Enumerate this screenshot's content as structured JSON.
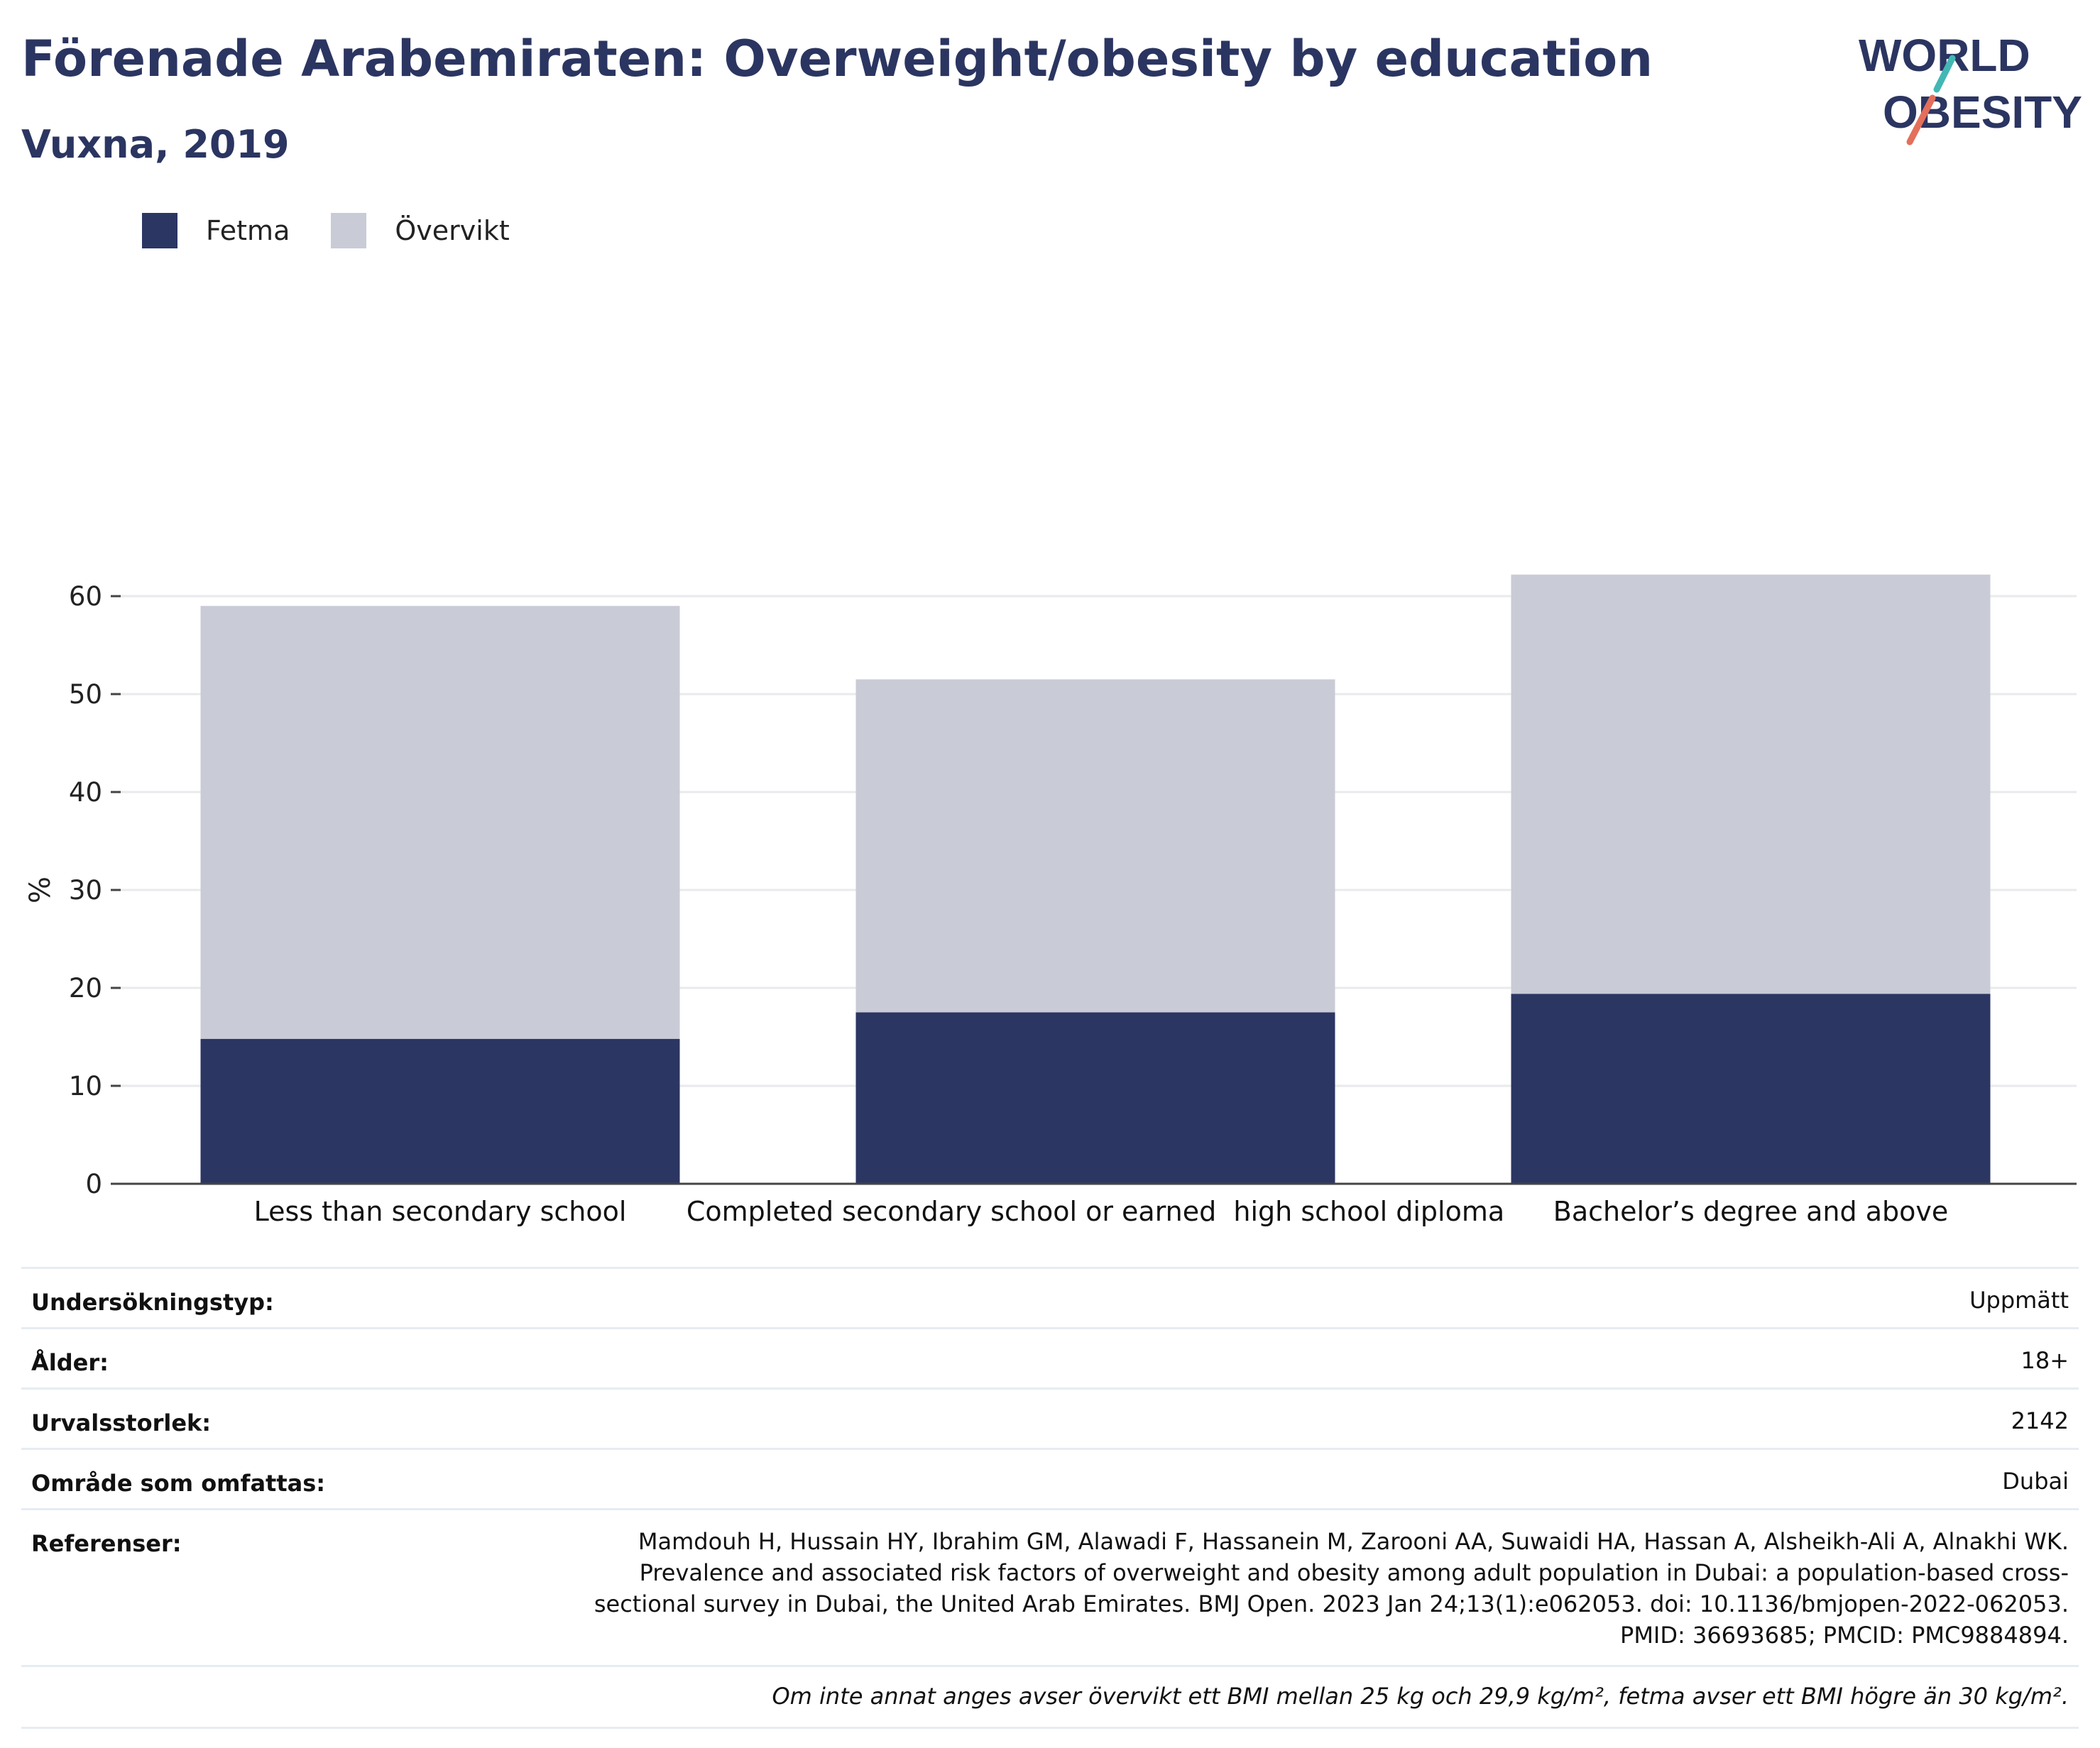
{
  "title": "Förenade Arabemiraten: Overweight/obesity by education",
  "subtitle": "Vuxna, 2019",
  "logo": {
    "line1": "WORLD",
    "line2": "OBESITY"
  },
  "legend": [
    {
      "label": "Fetma",
      "color": "#2b3663"
    },
    {
      "label": "Övervikt",
      "color": "#c9cbd6"
    }
  ],
  "chart_data": {
    "type": "bar",
    "stacked": true,
    "categories": [
      "Less than secondary school",
      "Completed secondary school or earned  high school diploma",
      "Bachelor’s degree and above"
    ],
    "series": [
      {
        "name": "Fetma",
        "values": [
          14.8,
          17.5,
          19.4
        ],
        "color": "#2b3663"
      },
      {
        "name": "Övervikt",
        "values": [
          44.2,
          34.0,
          42.8
        ],
        "color": "#c9cbd6"
      }
    ],
    "ylabel": "%",
    "ylim": [
      0,
      65
    ],
    "yticks": [
      0,
      10,
      20,
      30,
      40,
      50,
      60
    ],
    "grid": true,
    "legend_position": "top-left"
  },
  "meta": {
    "rows": [
      {
        "key": "Undersökningstyp:",
        "value": "Uppmätt"
      },
      {
        "key": "Ålder:",
        "value": "18+"
      },
      {
        "key": "Urvalsstorlek:",
        "value": "2142"
      },
      {
        "key": "Område som omfattas:",
        "value": "Dubai"
      }
    ],
    "references": {
      "key": "Referenser:",
      "value": "Mamdouh H, Hussain HY, Ibrahim GM, Alawadi F, Hassanein M, Zarooni AA, Suwaidi HA, Hassan A, Alsheikh-Ali A, Alnakhi WK. Prevalence and associated risk factors of overweight and obesity among adult population in Dubai: a population-based cross-sectional survey in Dubai, the United Arab Emirates. BMJ Open. 2023 Jan 24;13(1):e062053. doi: 10.1136/bmjopen-2022-062053. PMID: 36693685; PMCID: PMC9884894."
    },
    "note": "Om inte annat anges avser övervikt ett BMI mellan 25 kg och 29,9 kg/m², fetma avser ett BMI högre än 30 kg/m²."
  }
}
